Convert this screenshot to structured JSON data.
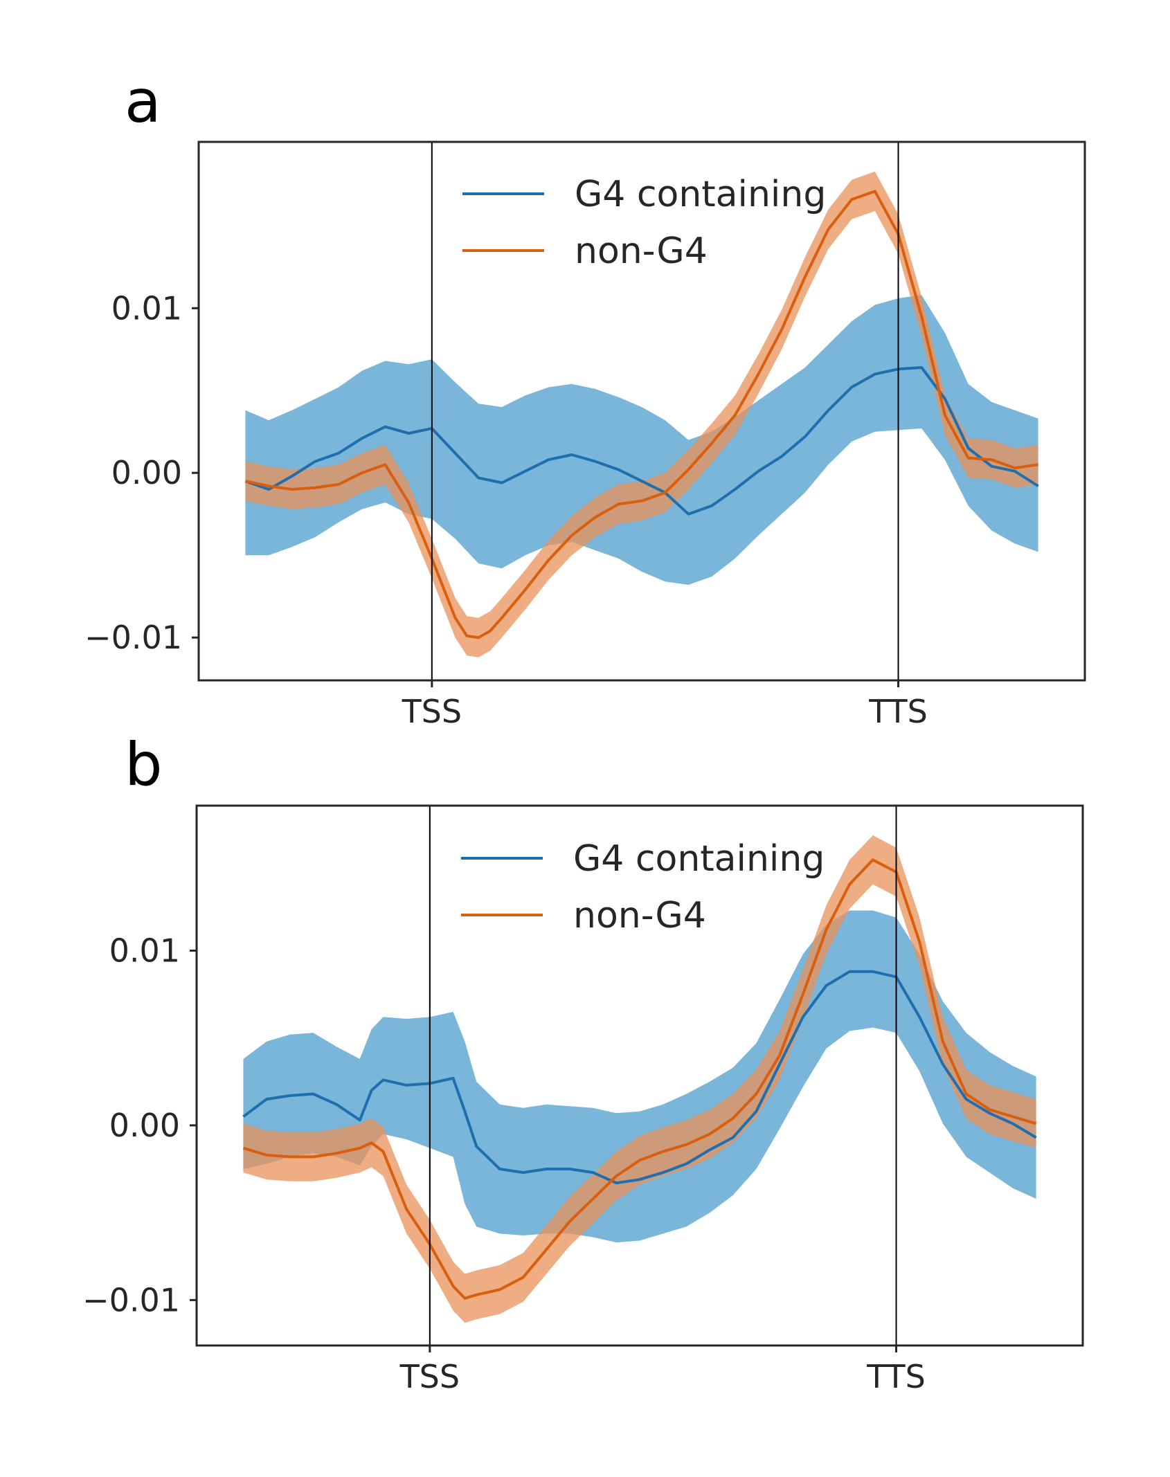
{
  "colors": {
    "g4": "#1f6fae",
    "g4_band": "#6baed6",
    "nong4": "#d95f0e",
    "nong4_band": "#e9915a",
    "axis": "#262626"
  },
  "chart_data": [
    {
      "panel_label": "a",
      "type": "line",
      "x_domain": [
        -1.0,
        2.8
      ],
      "ylim": [
        -0.0126,
        0.0201
      ],
      "yticks": [
        -0.01,
        0.0,
        0.01
      ],
      "ytick_labels": [
        "−0.01",
        "0.00",
        "0.01"
      ],
      "xticks": [
        0,
        2
      ],
      "xtick_labels": [
        "TSS",
        "TTS"
      ],
      "vlines": [
        0,
        2
      ],
      "legend": {
        "position": "upper-center",
        "entries": [
          "G4 containing",
          "non-G4"
        ]
      },
      "series": [
        {
          "name": "G4 containing",
          "color_key": "g4",
          "band_color_key": "g4_band",
          "x": [
            -0.8,
            -0.7,
            -0.6,
            -0.5,
            -0.4,
            -0.3,
            -0.2,
            -0.1,
            0.0,
            0.1,
            0.2,
            0.3,
            0.4,
            0.5,
            0.6,
            0.7,
            0.8,
            0.9,
            1.0,
            1.1,
            1.2,
            1.3,
            1.4,
            1.5,
            1.6,
            1.7,
            1.8,
            1.9,
            2.0,
            2.1,
            2.2,
            2.3,
            2.4,
            2.5,
            2.6
          ],
          "y": [
            -0.0005,
            -0.001,
            -0.0002,
            0.0007,
            0.0012,
            0.0021,
            0.0028,
            0.0024,
            0.0027,
            0.0012,
            -0.0003,
            -0.0006,
            0.0001,
            0.0008,
            0.0011,
            0.0007,
            0.0002,
            -0.0005,
            -0.0012,
            -0.0025,
            -0.002,
            -0.001,
            0.0001,
            0.001,
            0.0022,
            0.0038,
            0.0052,
            0.006,
            0.0063,
            0.0064,
            0.0045,
            0.0015,
            0.0004,
            0.0001,
            -0.0008
          ],
          "lower": [
            -0.005,
            -0.005,
            -0.0045,
            -0.0039,
            -0.003,
            -0.0022,
            -0.0018,
            -0.0025,
            -0.0028,
            -0.004,
            -0.0055,
            -0.0058,
            -0.005,
            -0.0044,
            -0.0042,
            -0.0047,
            -0.0052,
            -0.006,
            -0.0066,
            -0.0068,
            -0.0063,
            -0.0052,
            -0.0038,
            -0.0025,
            -0.0012,
            0.0005,
            0.0019,
            0.0025,
            0.0026,
            0.0027,
            0.0008,
            -0.002,
            -0.0035,
            -0.0043,
            -0.0048
          ],
          "upper": [
            0.0038,
            0.0032,
            0.0038,
            0.0045,
            0.0052,
            0.0062,
            0.0068,
            0.0066,
            0.0069,
            0.0055,
            0.0042,
            0.004,
            0.0047,
            0.0052,
            0.0054,
            0.0051,
            0.0046,
            0.004,
            0.0032,
            0.002,
            0.0025,
            0.0034,
            0.0044,
            0.0054,
            0.0064,
            0.0078,
            0.0092,
            0.0102,
            0.0106,
            0.0108,
            0.0085,
            0.0054,
            0.0043,
            0.0038,
            0.0033
          ]
        },
        {
          "name": "non-G4",
          "color_key": "nong4",
          "band_color_key": "nong4_band",
          "x": [
            -0.8,
            -0.7,
            -0.6,
            -0.5,
            -0.4,
            -0.3,
            -0.2,
            -0.1,
            0.0,
            0.1,
            0.15,
            0.2,
            0.25,
            0.3,
            0.4,
            0.5,
            0.6,
            0.7,
            0.8,
            0.9,
            1.0,
            1.1,
            1.2,
            1.3,
            1.4,
            1.5,
            1.6,
            1.7,
            1.8,
            1.9,
            2.0,
            2.1,
            2.2,
            2.3,
            2.4,
            2.5,
            2.6
          ],
          "y": [
            -0.0005,
            -0.0008,
            -0.001,
            -0.0009,
            -0.0007,
            0.0,
            0.0005,
            -0.0018,
            -0.0052,
            -0.0088,
            -0.0099,
            -0.01,
            -0.0096,
            -0.0088,
            -0.0071,
            -0.0053,
            -0.0038,
            -0.0027,
            -0.0019,
            -0.0017,
            -0.0012,
            0.0002,
            0.0018,
            0.0035,
            0.006,
            0.0087,
            0.0119,
            0.0148,
            0.0166,
            0.0171,
            0.0145,
            0.0095,
            0.0035,
            0.0009,
            0.0008,
            0.0003,
            0.0005
          ],
          "band": 0.0012
        }
      ]
    },
    {
      "panel_label": "b",
      "type": "line",
      "x_domain": [
        -1.0,
        2.8
      ],
      "ylim": [
        -0.0126,
        0.0183
      ],
      "yticks": [
        -0.01,
        0.0,
        0.01
      ],
      "ytick_labels": [
        "−0.01",
        "0.00",
        "0.01"
      ],
      "xticks": [
        0,
        2
      ],
      "xtick_labels": [
        "TSS",
        "TTS"
      ],
      "vlines": [
        0,
        2
      ],
      "legend": {
        "position": "upper-center",
        "entries": [
          "G4 containing",
          "non-G4"
        ]
      },
      "series": [
        {
          "name": "G4 containing",
          "color_key": "g4",
          "band_color_key": "g4_band",
          "x": [
            -0.8,
            -0.7,
            -0.6,
            -0.5,
            -0.4,
            -0.3,
            -0.25,
            -0.2,
            -0.1,
            0.0,
            0.1,
            0.15,
            0.2,
            0.3,
            0.4,
            0.5,
            0.6,
            0.7,
            0.8,
            0.9,
            1.0,
            1.1,
            1.2,
            1.3,
            1.4,
            1.5,
            1.6,
            1.7,
            1.8,
            1.9,
            2.0,
            2.1,
            2.2,
            2.3,
            2.4,
            2.5,
            2.6
          ],
          "y": [
            0.0005,
            0.0015,
            0.0017,
            0.0018,
            0.0012,
            0.0003,
            0.002,
            0.0026,
            0.0023,
            0.0024,
            0.0027,
            0.0008,
            -0.0012,
            -0.0025,
            -0.0027,
            -0.0025,
            -0.0025,
            -0.0027,
            -0.0033,
            -0.0031,
            -0.0027,
            -0.0022,
            -0.0014,
            -0.0007,
            0.0008,
            0.0035,
            0.0062,
            0.008,
            0.0088,
            0.0088,
            0.0085,
            0.0062,
            0.0035,
            0.0015,
            0.0007,
            0.0001,
            -0.0007
          ],
          "lower": [
            -0.0025,
            -0.0022,
            -0.0018,
            -0.0016,
            -0.0018,
            -0.0023,
            -0.0012,
            -0.0005,
            -0.0008,
            -0.0013,
            -0.0018,
            -0.0045,
            -0.0058,
            -0.0062,
            -0.0063,
            -0.0062,
            -0.0062,
            -0.0064,
            -0.0067,
            -0.0066,
            -0.0062,
            -0.0058,
            -0.005,
            -0.004,
            -0.0025,
            -0.0002,
            0.0022,
            0.0044,
            0.0054,
            0.0056,
            0.0053,
            0.0031,
            0.0001,
            -0.0018,
            -0.0027,
            -0.0036,
            -0.0042
          ],
          "upper": [
            0.0038,
            0.0048,
            0.0052,
            0.0053,
            0.0045,
            0.0038,
            0.0055,
            0.0062,
            0.0061,
            0.0062,
            0.0065,
            0.0048,
            0.0025,
            0.0012,
            0.001,
            0.0012,
            0.0011,
            0.001,
            0.0007,
            0.0008,
            0.0012,
            0.0018,
            0.0025,
            0.0033,
            0.0047,
            0.0072,
            0.0098,
            0.0115,
            0.0123,
            0.0123,
            0.0119,
            0.0098,
            0.0071,
            0.0053,
            0.0042,
            0.0034,
            0.0028
          ]
        },
        {
          "name": "non-G4",
          "color_key": "nong4",
          "band_color_key": "nong4_band",
          "x": [
            -0.8,
            -0.7,
            -0.6,
            -0.5,
            -0.4,
            -0.3,
            -0.25,
            -0.2,
            -0.1,
            0.0,
            0.1,
            0.15,
            0.2,
            0.3,
            0.4,
            0.5,
            0.6,
            0.7,
            0.8,
            0.9,
            1.0,
            1.1,
            1.2,
            1.3,
            1.4,
            1.5,
            1.6,
            1.7,
            1.8,
            1.9,
            2.0,
            2.1,
            2.2,
            2.3,
            2.4,
            2.5,
            2.6
          ],
          "y": [
            -0.0013,
            -0.0017,
            -0.0018,
            -0.0018,
            -0.0016,
            -0.0013,
            -0.001,
            -0.0015,
            -0.0048,
            -0.0068,
            -0.0092,
            -0.0099,
            -0.0097,
            -0.0094,
            -0.0087,
            -0.0071,
            -0.0055,
            -0.0042,
            -0.0029,
            -0.002,
            -0.0015,
            -0.0011,
            -0.0005,
            0.0004,
            0.0018,
            0.004,
            0.0075,
            0.0112,
            0.0138,
            0.0152,
            0.0145,
            0.0105,
            0.0048,
            0.0018,
            0.0009,
            0.0005,
            0.0001
          ],
          "band": 0.0014
        }
      ]
    }
  ]
}
